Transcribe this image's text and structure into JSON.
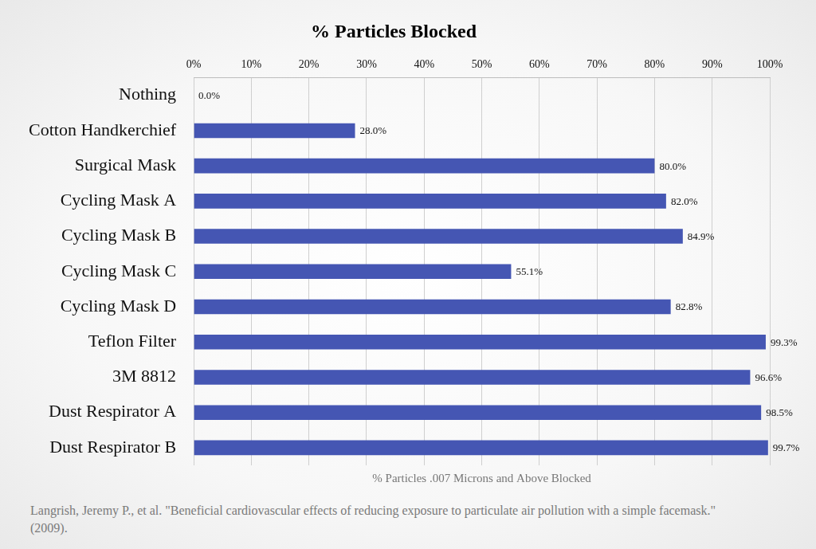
{
  "chart_data": {
    "type": "bar",
    "orientation": "horizontal",
    "title": "% Particles Blocked",
    "categories": [
      "Nothing",
      "Cotton Handkerchief",
      "Surgical Mask",
      "Cycling Mask A",
      "Cycling Mask B",
      "Cycling Mask C",
      "Cycling Mask D",
      "Teflon Filter",
      "3M 8812",
      "Dust Respirator A",
      "Dust Respirator B"
    ],
    "values": [
      0.0,
      28.0,
      80.0,
      82.0,
      84.9,
      55.1,
      82.8,
      99.3,
      96.6,
      98.5,
      99.7
    ],
    "value_labels": [
      "0.0%",
      "28.0%",
      "80.0%",
      "82.0%",
      "84.9%",
      "55.1%",
      "82.8%",
      "99.3%",
      "96.6%",
      "98.5%",
      "99.7%"
    ],
    "data_labels": true,
    "color": "#4556b3",
    "xlabel": "% Particles .007 Microns and Above Blocked",
    "xlim": [
      0,
      100
    ],
    "xticks": [
      {
        "value": 0,
        "label": "0%"
      },
      {
        "value": 10,
        "label": "10%"
      },
      {
        "value": 20,
        "label": "20%"
      },
      {
        "value": 30,
        "label": "30%"
      },
      {
        "value": 40,
        "label": "40%"
      },
      {
        "value": 50,
        "label": "50%"
      },
      {
        "value": 60,
        "label": "60%"
      },
      {
        "value": 70,
        "label": "70%"
      },
      {
        "value": 80,
        "label": "80%"
      },
      {
        "value": 90,
        "label": "90%"
      },
      {
        "value": 100,
        "label": "100%"
      }
    ],
    "grid": true,
    "annotations": [
      "Langrish, Jeremy P., et al. \"Beneficial cardiovascular effects of reducing exposure to particulate air pollution with a simple facemask.\" (2009)."
    ]
  }
}
